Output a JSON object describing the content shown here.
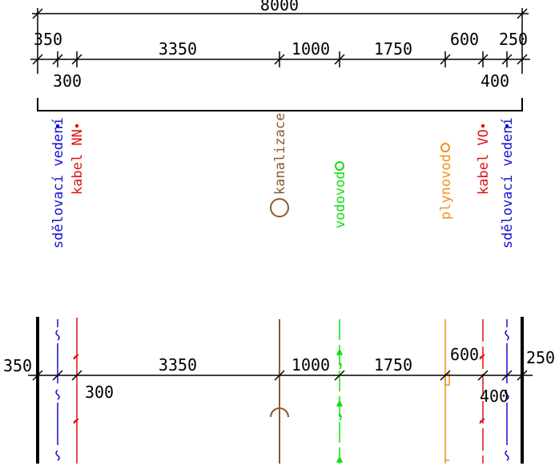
{
  "top_dimensions": {
    "overall": "8000",
    "left_outer": "350",
    "left_inner": "300",
    "span_main": "3350",
    "span_1000": "1000",
    "span_1750": "1750",
    "span_600": "600",
    "right_outer": "250",
    "right_inner": "400"
  },
  "utilities": {
    "telecom_left": "sdělovací vedení",
    "cable_nn": "kabel NN",
    "sewer": "kanalizace",
    "water": "vodovod",
    "gas": "plynovod",
    "cable_vo": "kabel VO",
    "telecom_right": "sdělovací vedení"
  },
  "bottom_dimensions": {
    "left_outer": "350",
    "left_inner": "300",
    "span_main": "3350",
    "span_1000": "1000",
    "span_1750": "1750",
    "span_600": "600",
    "right_inner": "400",
    "right_outer": "250"
  },
  "colors": {
    "telecom": "#1010d0",
    "power": "#e01010",
    "sewer": "#8b5a2b",
    "water": "#10e010",
    "gas": "#f0901a"
  }
}
